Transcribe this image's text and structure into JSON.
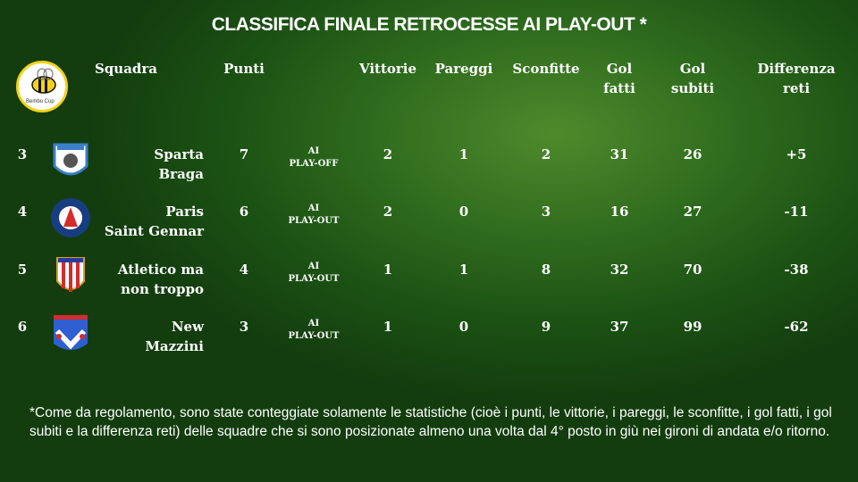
{
  "title": "CLASSIFICA FINALE RETROCESSE AI PLAY-OUT *",
  "logo_text": "Bembo Cup",
  "headers": {
    "squadra": "Squadra",
    "punti": "Punti",
    "vittorie": "Vittorie",
    "pareggi": "Pareggi",
    "sconfitte": "Sconfitte",
    "gol_fatti_1": "Gol",
    "gol_fatti_2": "fatti",
    "gol_subiti_1": "Gol",
    "gol_subiti_2": "subiti",
    "diff_1": "Differenza",
    "diff_2": "reti"
  },
  "rows": [
    {
      "rank": "3",
      "name1": "Sparta",
      "name2": "Braga",
      "punti": "7",
      "status1": "AI",
      "status2": "PLAY-OFF",
      "vittorie": "2",
      "pareggi": "1",
      "sconfitte": "2",
      "gol_fatti": "31",
      "gol_subiti": "26",
      "diff": "+5",
      "crest": "sparta-braga-crest"
    },
    {
      "rank": "4",
      "name1": "Paris",
      "name2": "Saint Gennar",
      "punti": "6",
      "status1": "AI",
      "status2": "PLAY-OUT",
      "vittorie": "2",
      "pareggi": "0",
      "sconfitte": "3",
      "gol_fatti": "16",
      "gol_subiti": "27",
      "diff": "-11",
      "crest": "paris-saint-gennar-crest"
    },
    {
      "rank": "5",
      "name1": "Atletico ma",
      "name2": "non troppo",
      "punti": "4",
      "status1": "AI",
      "status2": "PLAY-OUT",
      "vittorie": "1",
      "pareggi": "1",
      "sconfitte": "8",
      "gol_fatti": "32",
      "gol_subiti": "70",
      "diff": "-38",
      "crest": "atletico-crest"
    },
    {
      "rank": "6",
      "name1": "New",
      "name2": "Mazzini",
      "punti": "3",
      "status1": "AI",
      "status2": "PLAY-OUT",
      "vittorie": "1",
      "pareggi": "0",
      "sconfitte": "9",
      "gol_fatti": "37",
      "gol_subiti": "99",
      "diff": "-62",
      "crest": "new-mazzini-crest"
    }
  ],
  "footnote": "*Come da regolamento, sono state conteggiate solamente le statistiche (cioè i punti, le vittorie, i pareggi, le sconfitte, i gol fatti, i gol subiti e la differenza reti) delle squadre che si sono posizionate almeno una volta dal 4° posto in giù nei gironi di andata e/o ritorno."
}
